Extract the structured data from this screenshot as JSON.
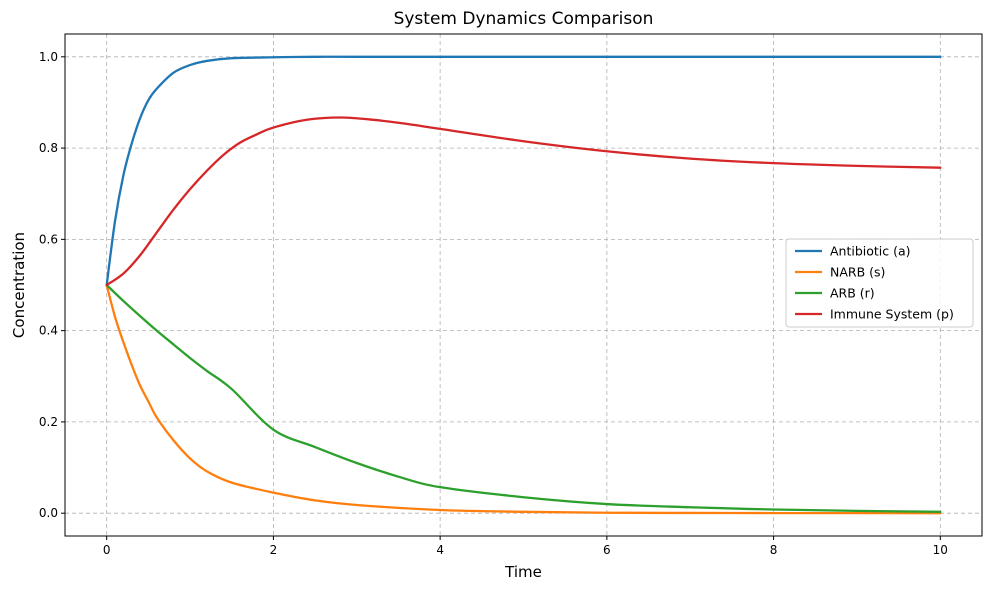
{
  "chart_data": {
    "type": "line",
    "title": "System Dynamics Comparison",
    "xlabel": "Time",
    "ylabel": "Concentration",
    "xlim": [
      -0.5,
      10.5
    ],
    "ylim": [
      -0.05,
      1.05
    ],
    "xticks": [
      0,
      2,
      4,
      6,
      8,
      10
    ],
    "yticks": [
      0.0,
      0.2,
      0.4,
      0.6,
      0.8,
      1.0
    ],
    "xtick_labels": [
      "0",
      "2",
      "4",
      "6",
      "8",
      "10"
    ],
    "ytick_labels": [
      "0.0",
      "0.2",
      "0.4",
      "0.6",
      "0.8",
      "1.0"
    ],
    "grid": true,
    "legend_position": "center-right",
    "series": [
      {
        "name": "Antibiotic (a)",
        "color": "#1f77b4",
        "x": [
          0,
          0.1,
          0.2,
          0.3,
          0.4,
          0.5,
          0.6,
          0.8,
          1.0,
          1.2,
          1.5,
          2.0,
          2.5,
          3,
          4,
          5,
          6,
          7,
          8,
          9,
          10
        ],
        "y": [
          0.5,
          0.64,
          0.74,
          0.81,
          0.865,
          0.905,
          0.93,
          0.965,
          0.982,
          0.991,
          0.997,
          0.999,
          1.0,
          1.0,
          1.0,
          1.0,
          1.0,
          1.0,
          1.0,
          1.0,
          1.0
        ]
      },
      {
        "name": "NARB (s)",
        "color": "#ff7f0e",
        "x": [
          0,
          0.1,
          0.2,
          0.3,
          0.4,
          0.5,
          0.6,
          0.8,
          1.0,
          1.2,
          1.5,
          2.0,
          2.5,
          3,
          4,
          5,
          6,
          7,
          8,
          9,
          10
        ],
        "y": [
          0.5,
          0.43,
          0.375,
          0.325,
          0.28,
          0.245,
          0.21,
          0.16,
          0.12,
          0.092,
          0.067,
          0.045,
          0.028,
          0.018,
          0.007,
          0.003,
          0.001,
          0.0005,
          0.0002,
          0.0001,
          0.0
        ]
      },
      {
        "name": "ARB (r)",
        "color": "#2ca02c",
        "x": [
          0,
          0.2,
          0.4,
          0.6,
          0.8,
          1.0,
          1.2,
          1.5,
          2.0,
          2.5,
          3,
          3.5,
          4,
          5,
          6,
          7,
          8,
          9,
          10
        ],
        "y": [
          0.5,
          0.465,
          0.432,
          0.4,
          0.37,
          0.34,
          0.312,
          0.272,
          0.183,
          0.145,
          0.11,
          0.08,
          0.057,
          0.035,
          0.02,
          0.013,
          0.008,
          0.005,
          0.003
        ]
      },
      {
        "name": "Immune System (p)",
        "color": "#d62728",
        "x": [
          0,
          0.2,
          0.4,
          0.6,
          0.8,
          1.0,
          1.2,
          1.4,
          1.6,
          1.8,
          2.0,
          2.4,
          2.8,
          3.2,
          3.6,
          4,
          5,
          6,
          7,
          8,
          9,
          10
        ],
        "y": [
          0.5,
          0.525,
          0.565,
          0.615,
          0.665,
          0.71,
          0.75,
          0.785,
          0.812,
          0.83,
          0.845,
          0.862,
          0.867,
          0.862,
          0.853,
          0.842,
          0.815,
          0.793,
          0.777,
          0.767,
          0.761,
          0.757
        ]
      }
    ]
  }
}
